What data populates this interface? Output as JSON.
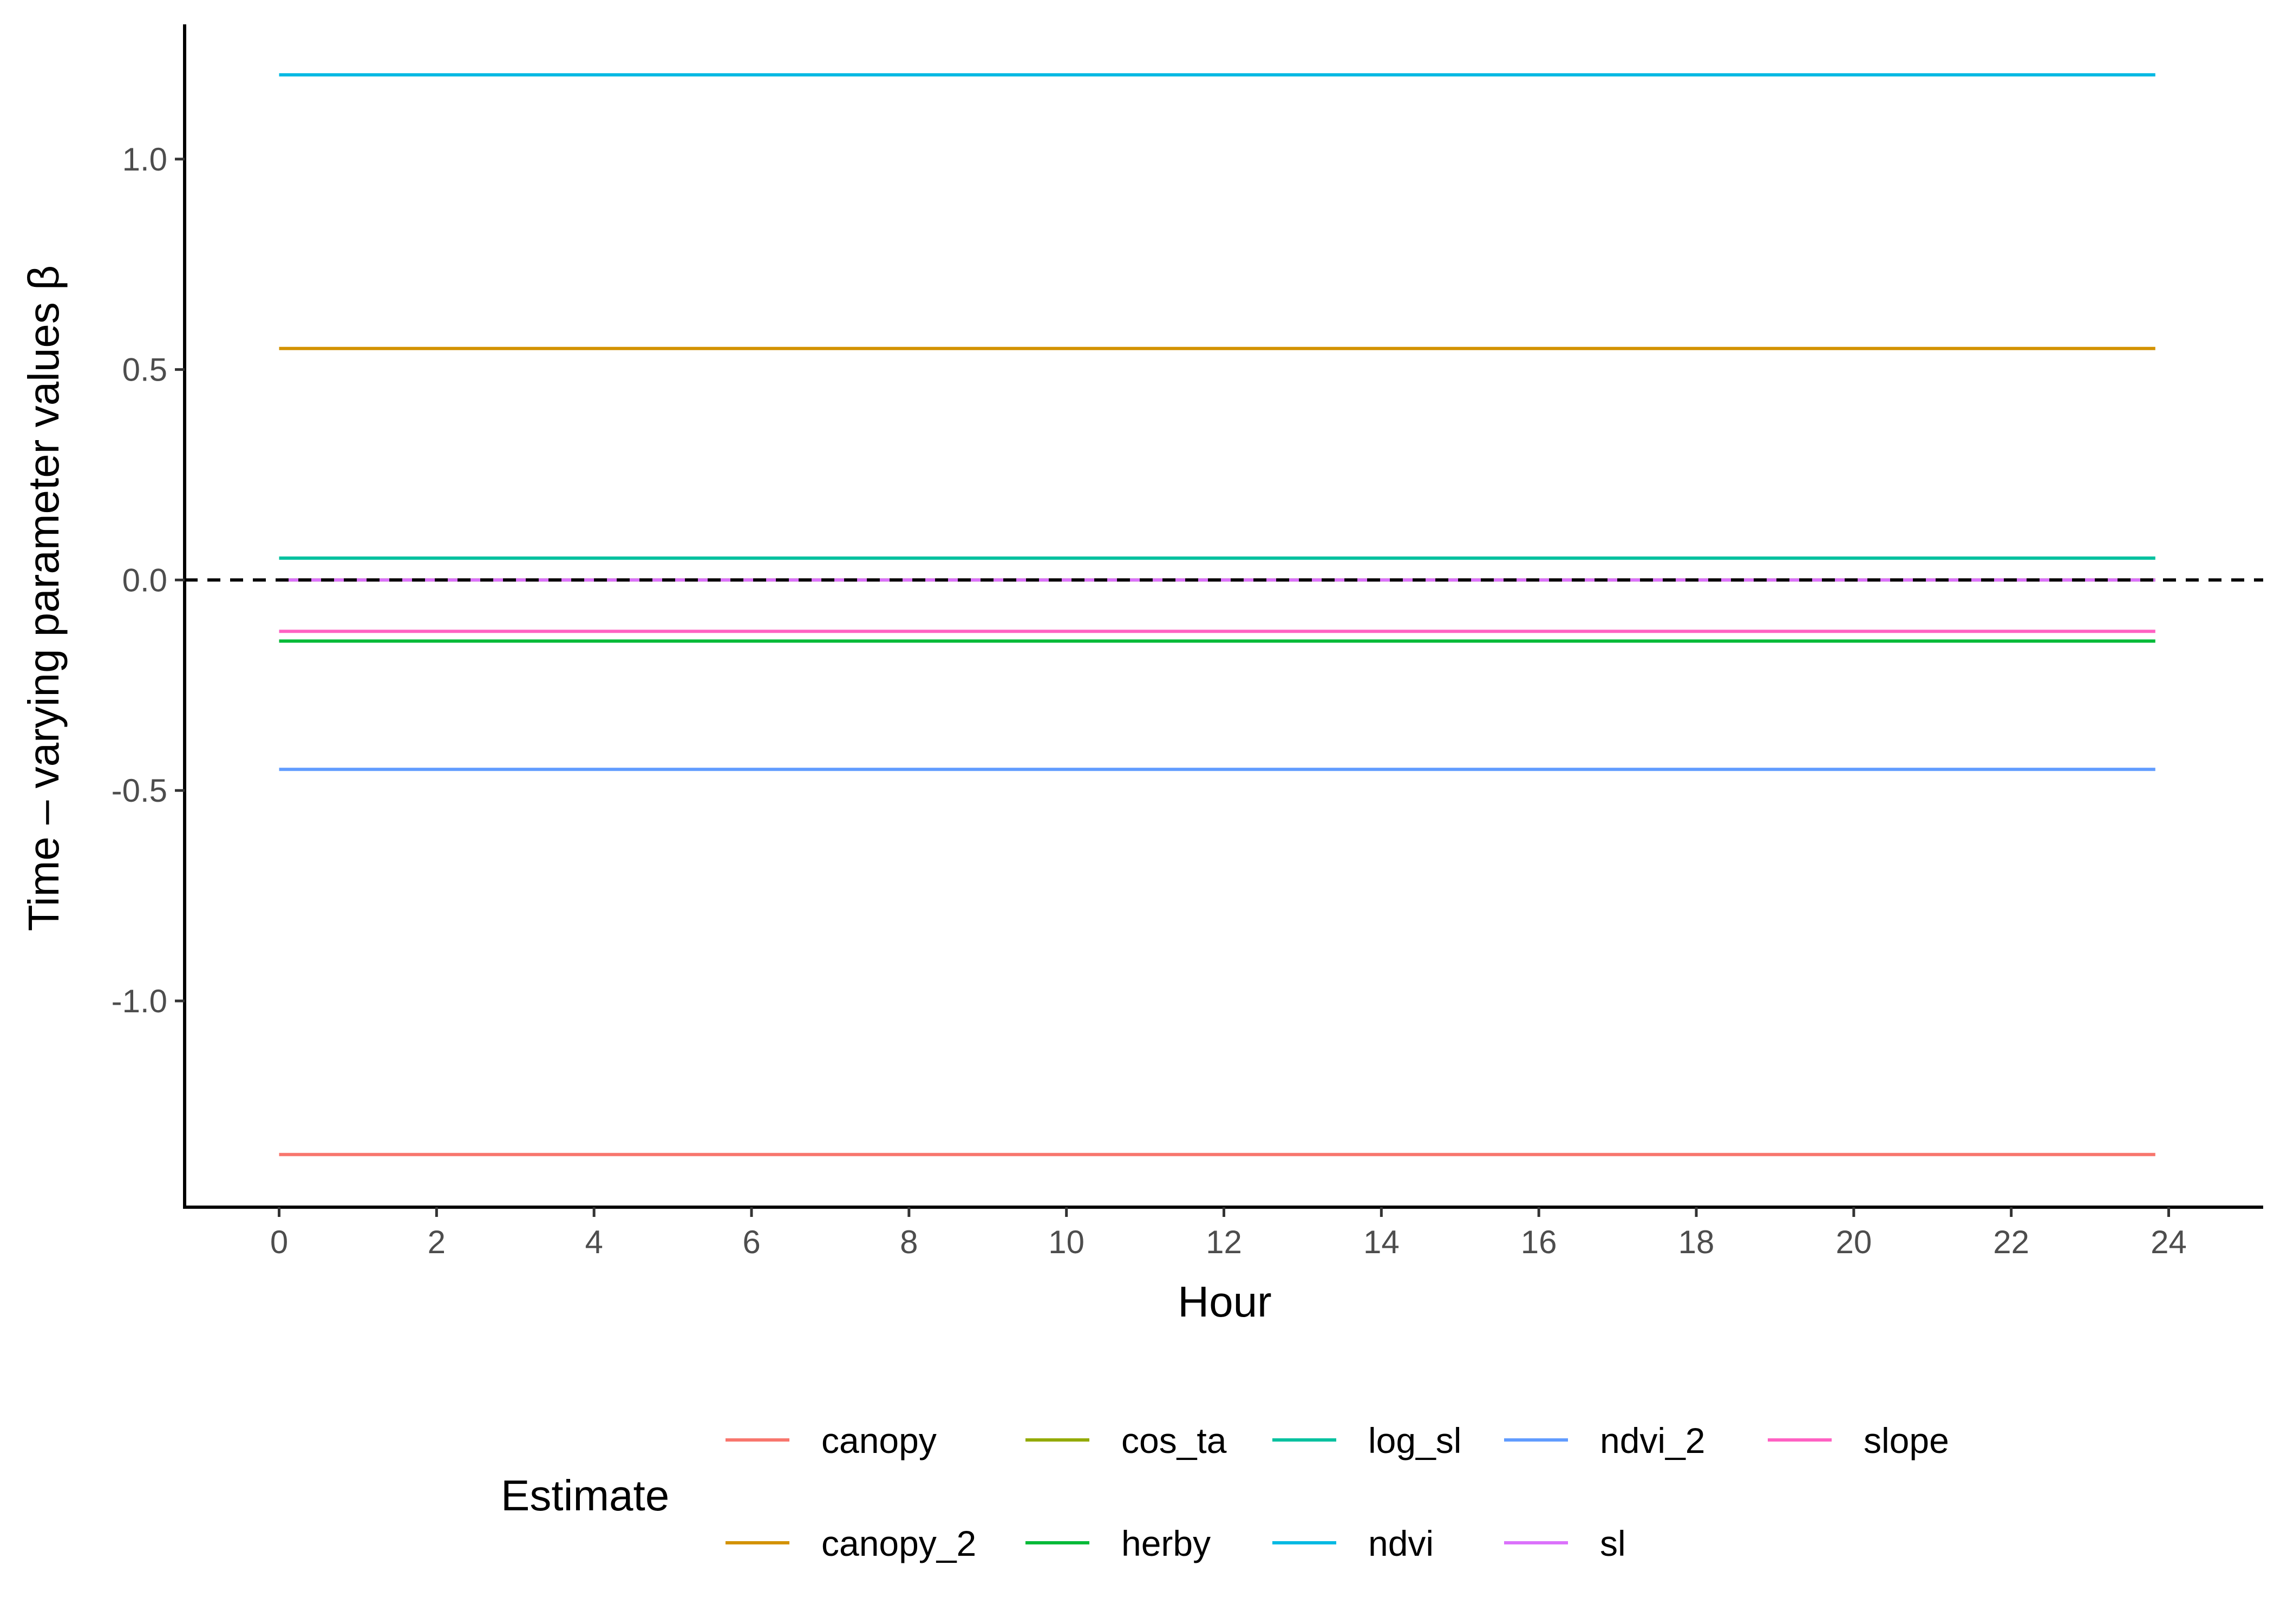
{
  "chart_data": {
    "type": "line",
    "xlabel": "Hour",
    "ylabel": "Time – varying parameter values β",
    "xlim": [
      -1.2,
      25.2
    ],
    "ylim": [
      -1.49,
      1.32
    ],
    "x_ticks": [
      0,
      2,
      4,
      6,
      8,
      10,
      12,
      14,
      16,
      18,
      20,
      22,
      24
    ],
    "y_ticks": [
      1.0,
      0.5,
      0.0,
      -0.5,
      -1.0
    ],
    "y_tick_labels": [
      "1.0",
      "0.5",
      "0.0",
      "-0.5",
      "-1.0"
    ],
    "grid": false,
    "reference_line": {
      "y": 0,
      "style": "dashed",
      "color": "#000000"
    },
    "legend": {
      "title": "Estimate",
      "placement": "bottom"
    },
    "series": [
      {
        "name": "canopy",
        "color": "#F8766D",
        "x": [
          0,
          23.83
        ],
        "y": [
          -1.365,
          -1.365
        ]
      },
      {
        "name": "canopy_2",
        "color": "#D39200",
        "x": [
          0,
          23.83
        ],
        "y": [
          0.55,
          0.55
        ]
      },
      {
        "name": "cos_ta",
        "color": "#93AA00",
        "x": [
          0,
          23.83
        ],
        "y": [
          0.0,
          0.0
        ]
      },
      {
        "name": "herby",
        "color": "#00BA38",
        "x": [
          0,
          23.83
        ],
        "y": [
          -0.145,
          -0.145
        ]
      },
      {
        "name": "log_sl",
        "color": "#00C19F",
        "x": [
          0,
          23.83
        ],
        "y": [
          0.052,
          0.052
        ]
      },
      {
        "name": "ndvi",
        "color": "#00B9E3",
        "x": [
          0,
          23.83
        ],
        "y": [
          1.2,
          1.2
        ]
      },
      {
        "name": "ndvi_2",
        "color": "#619CFF",
        "x": [
          0,
          23.83
        ],
        "y": [
          -0.45,
          -0.45
        ]
      },
      {
        "name": "sl",
        "color": "#DB72FB",
        "x": [
          0,
          23.83
        ],
        "y": [
          0.0,
          0.0
        ]
      },
      {
        "name": "slope",
        "color": "#FF61C3",
        "x": [
          0,
          23.83
        ],
        "y": [
          -0.122,
          -0.122
        ]
      }
    ]
  }
}
